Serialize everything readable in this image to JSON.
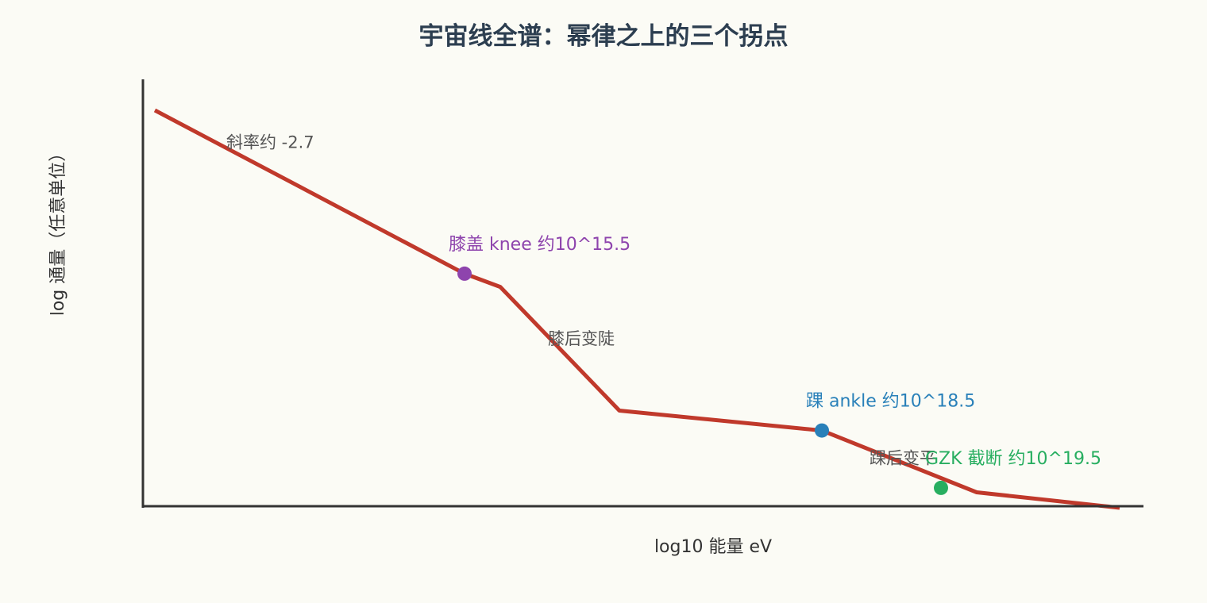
{
  "chart_data": {
    "type": "line",
    "title": "宇宙线全谱：幂律之上的三个拐点",
    "xlabel": "log10 能量 eV",
    "ylabel": "log 通量（任意单位）",
    "xlim": [
      12.8,
      21.2
    ],
    "ylim": [
      -7.5,
      2.2
    ],
    "grid": false,
    "series": [
      {
        "color": "#c0392b",
        "x": [
          12.9,
          15.5,
          15.8,
          16.8,
          18.5,
          19.8,
          21.0
        ],
        "y": [
          1.5,
          -2.2,
          -2.5,
          -5.3,
          -5.75,
          -7.15,
          -7.5
        ]
      }
    ],
    "key_points": [
      {
        "label": "膝盖 knee 约10^15.5",
        "x": 15.5,
        "y": -2.2,
        "color": "#8e44ad"
      },
      {
        "label": "踝 ankle 约10^18.5",
        "x": 18.5,
        "y": -5.75,
        "color": "#2980b9"
      },
      {
        "label": "GZK 截断 约10^19.5",
        "x": 19.5,
        "y": -7.05,
        "color": "#27ae60"
      }
    ],
    "annotations": [
      {
        "text": "斜率约 -2.7",
        "x": 13.5,
        "y": 0.65
      },
      {
        "text": "膝后变陡",
        "x": 16.2,
        "y": -3.8
      },
      {
        "text": "踝后变平",
        "x": 18.9,
        "y": -6.5
      }
    ]
  }
}
